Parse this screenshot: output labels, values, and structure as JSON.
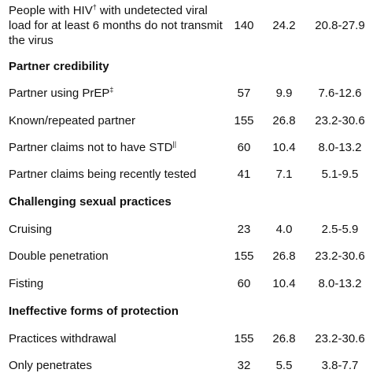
{
  "rows": [
    {
      "label": "People with HIV",
      "sup": "†",
      "label_rest": " with undetected viral load for at least 6 months do not transmit the virus",
      "n": "140",
      "pct": "24.2",
      "ci": "20.8-27.9"
    }
  ],
  "sections": [
    {
      "title": "Partner credibility",
      "items": [
        {
          "label": "Partner using PrEP",
          "sup": "‡",
          "n": "57",
          "pct": "9.9",
          "ci": "7.6-12.6"
        },
        {
          "label": "Known/repeated partner",
          "sup": "",
          "n": "155",
          "pct": "26.8",
          "ci": "23.2-30.6"
        },
        {
          "label": "Partner claims not to have STD",
          "sup": "||",
          "n": "60",
          "pct": "10.4",
          "ci": "8.0-13.2"
        },
        {
          "label": "Partner claims being recently tested",
          "sup": "",
          "n": "41",
          "pct": "7.1",
          "ci": "5.1-9.5"
        }
      ]
    },
    {
      "title": "Challenging sexual practices",
      "items": [
        {
          "label": "Cruising",
          "sup": "",
          "n": "23",
          "pct": "4.0",
          "ci": "2.5-5.9"
        },
        {
          "label": "Double penetration",
          "sup": "",
          "n": "155",
          "pct": "26.8",
          "ci": "23.2-30.6"
        },
        {
          "label": "Fisting",
          "sup": "",
          "n": "60",
          "pct": "10.4",
          "ci": "8.0-13.2"
        }
      ]
    },
    {
      "title": "Ineffective forms of protection",
      "items": [
        {
          "label": "Practices withdrawal",
          "sup": "",
          "n": "155",
          "pct": "26.8",
          "ci": "23.2-30.6"
        },
        {
          "label": "Only penetrates",
          "sup": "",
          "n": "32",
          "pct": "5.5",
          "ci": "3.8-7.7"
        }
      ]
    }
  ]
}
